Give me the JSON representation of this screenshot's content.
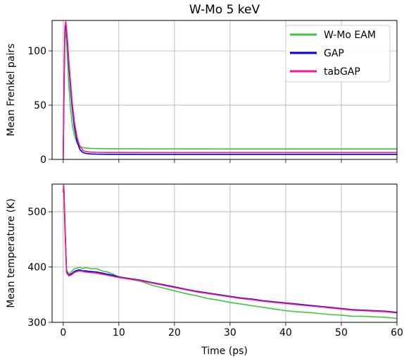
{
  "figure": {
    "title": "W-Mo 5 keV",
    "xlabel": "Time (ps)"
  },
  "legend": {
    "placement": "top-right",
    "entries": [
      {
        "label": "W-Mo EAM",
        "color": "#3cc83c"
      },
      {
        "label": "GAP",
        "color": "#0000dd"
      },
      {
        "label": "tabGAP",
        "color": "#ff1493"
      }
    ]
  },
  "chart_data": [
    {
      "type": "line",
      "title": "W-Mo 5 keV",
      "xlabel": "",
      "ylabel": "Mean Frenkel pairs",
      "xlim": [
        -2,
        60
      ],
      "ylim": [
        0,
        128
      ],
      "xticks": [
        0,
        10,
        20,
        30,
        40,
        50,
        60
      ],
      "yticks": [
        0,
        50,
        100
      ],
      "grid": true,
      "legend": "top-right",
      "series": [
        {
          "name": "W-Mo EAM",
          "color": "#3cc83c",
          "x": [
            0,
            0.15,
            0.3,
            0.45,
            0.6,
            0.8,
            1.0,
            1.3,
            1.6,
            2.0,
            2.5,
            3.0,
            3.5,
            4.0,
            5.0,
            6.0,
            8.0,
            10,
            15,
            20,
            30,
            40,
            50,
            60
          ],
          "y": [
            0,
            60,
            110,
            120,
            110,
            90,
            68,
            48,
            33,
            22,
            15,
            12,
            11,
            10.5,
            10,
            10,
            9.8,
            9.8,
            9.7,
            9.7,
            9.6,
            9.6,
            9.6,
            9.6
          ]
        },
        {
          "name": "GAP",
          "color": "#0000dd",
          "x": [
            0,
            0.15,
            0.3,
            0.45,
            0.6,
            0.8,
            1.0,
            1.3,
            1.6,
            2.0,
            2.5,
            3.0,
            3.5,
            4.0,
            5.0,
            6.0,
            8.0,
            10,
            15,
            20,
            30,
            40,
            50,
            60
          ],
          "y": [
            0,
            70,
            118,
            124,
            118,
            104,
            88,
            66,
            48,
            30,
            16,
            9,
            6.5,
            5.5,
            5,
            4.8,
            4.7,
            4.7,
            4.6,
            4.6,
            4.6,
            4.6,
            4.6,
            4.6
          ]
        },
        {
          "name": "tabGAP",
          "color": "#ff1493",
          "x": [
            0,
            0.15,
            0.3,
            0.45,
            0.6,
            0.8,
            1.0,
            1.3,
            1.6,
            2.0,
            2.5,
            3.0,
            3.5,
            4.0,
            5.0,
            6.0,
            8.0,
            10,
            15,
            20,
            30,
            40,
            50,
            60
          ],
          "y": [
            0,
            75,
            122,
            127,
            121,
            108,
            92,
            72,
            53,
            35,
            20,
            12,
            8.5,
            7.2,
            6.7,
            6.5,
            6.4,
            6.4,
            6.3,
            6.3,
            6.3,
            6.3,
            6.3,
            6.3
          ]
        }
      ]
    },
    {
      "type": "line",
      "title": "",
      "xlabel": "Time (ps)",
      "ylabel": "Mean temperature (K)",
      "xlim": [
        -2,
        60
      ],
      "ylim": [
        300,
        550
      ],
      "xticks": [
        0,
        10,
        20,
        30,
        40,
        50,
        60
      ],
      "yticks": [
        300,
        400,
        500
      ],
      "grid": true,
      "series": [
        {
          "name": "W-Mo EAM",
          "color": "#3cc83c",
          "x": [
            0,
            0.1,
            0.3,
            0.6,
            1.0,
            1.5,
            2.0,
            2.5,
            3.0,
            3.5,
            4.0,
            5.0,
            6.0,
            7.0,
            8.0,
            9.0,
            10,
            12,
            14,
            16,
            18,
            20,
            22,
            24,
            26,
            28,
            30,
            32,
            34,
            36,
            38,
            40,
            42,
            44,
            46,
            48,
            50,
            52,
            54,
            56,
            58,
            60
          ],
          "y": [
            535,
            540,
            470,
            395,
            387,
            392,
            397,
            398,
            400,
            397,
            399,
            397,
            397,
            393,
            391,
            387,
            382,
            378,
            374,
            367,
            362,
            357,
            352,
            348,
            343,
            340,
            336,
            333,
            330,
            327,
            324,
            321,
            319,
            318,
            316,
            314,
            313,
            311,
            311,
            310,
            309,
            307
          ]
        },
        {
          "name": "GAP",
          "color": "#0000dd",
          "x": [
            0,
            0.1,
            0.3,
            0.6,
            1.0,
            1.5,
            2.0,
            2.5,
            3.0,
            3.5,
            4.0,
            5.0,
            6.0,
            7.0,
            8.0,
            9.0,
            10,
            12,
            14,
            16,
            18,
            20,
            22,
            24,
            26,
            28,
            30,
            32,
            34,
            36,
            38,
            40,
            42,
            44,
            46,
            48,
            50,
            52,
            54,
            56,
            58,
            60
          ],
          "y": [
            535,
            545,
            480,
            392,
            385,
            388,
            392,
            394,
            395,
            393,
            393,
            392,
            391,
            389,
            387,
            385,
            382,
            379,
            376,
            372,
            368,
            364,
            360,
            356,
            353,
            350,
            347,
            344,
            342,
            339,
            337,
            335,
            333,
            331,
            329,
            327,
            325,
            323,
            322,
            321,
            320,
            318
          ]
        },
        {
          "name": "tabGAP",
          "color": "#ff1493",
          "x": [
            0,
            0.1,
            0.3,
            0.6,
            1.0,
            1.5,
            2.0,
            2.5,
            3.0,
            3.5,
            4.0,
            5.0,
            6.0,
            7.0,
            8.0,
            9.0,
            10,
            12,
            14,
            16,
            18,
            20,
            22,
            24,
            26,
            28,
            30,
            32,
            34,
            36,
            38,
            40,
            42,
            44,
            46,
            48,
            50,
            52,
            54,
            56,
            58,
            60
          ],
          "y": [
            535,
            548,
            485,
            390,
            384,
            386,
            390,
            392,
            393,
            392,
            391,
            390,
            389,
            387,
            385,
            383,
            381,
            378,
            375,
            371,
            367,
            363,
            359,
            355,
            352,
            349,
            346,
            343,
            341,
            338,
            336,
            334,
            332,
            330,
            328,
            326,
            324,
            322,
            321,
            320,
            319,
            317
          ]
        }
      ]
    }
  ]
}
